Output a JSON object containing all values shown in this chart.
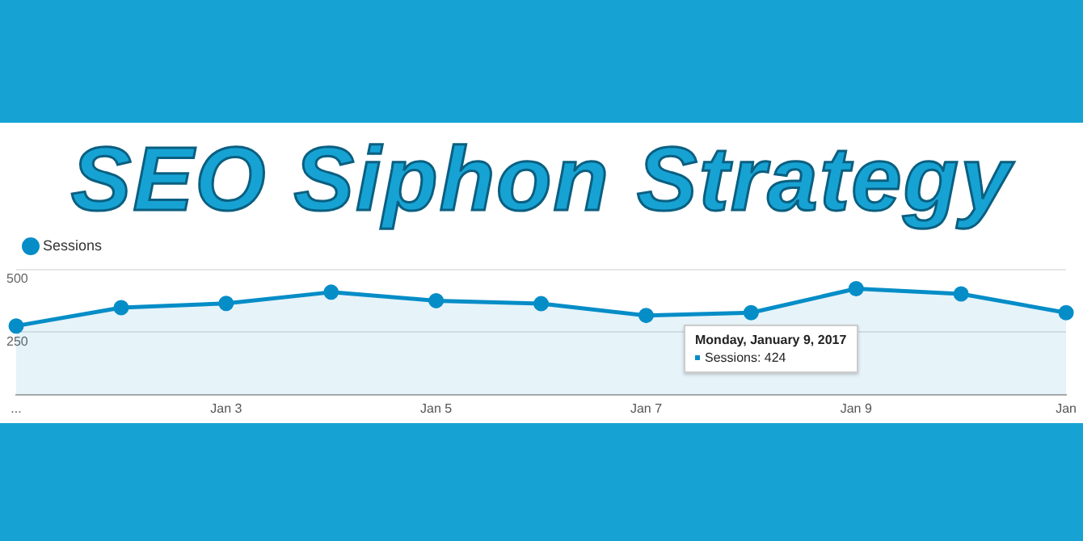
{
  "chart_data": {
    "type": "area",
    "title": "SEO Siphon Strategy",
    "categories": [
      "...",
      null,
      "Jan 3",
      null,
      "Jan 5",
      null,
      "Jan 7",
      null,
      "Jan 9",
      null,
      "Jan"
    ],
    "series": [
      {
        "name": "Sessions",
        "color": "#058dc7",
        "values": [
          275,
          348,
          365,
          410,
          376,
          364,
          317,
          328,
          424,
          403,
          328
        ]
      }
    ],
    "ylim": [
      0,
      500
    ],
    "yticks": [
      {
        "value": 0,
        "label": null
      },
      250,
      500
    ],
    "grid": "y",
    "legend": "top left",
    "marker": "circle",
    "annotations": [
      "Monday, January 9, 2017",
      "Sessions: 424"
    ]
  }
}
